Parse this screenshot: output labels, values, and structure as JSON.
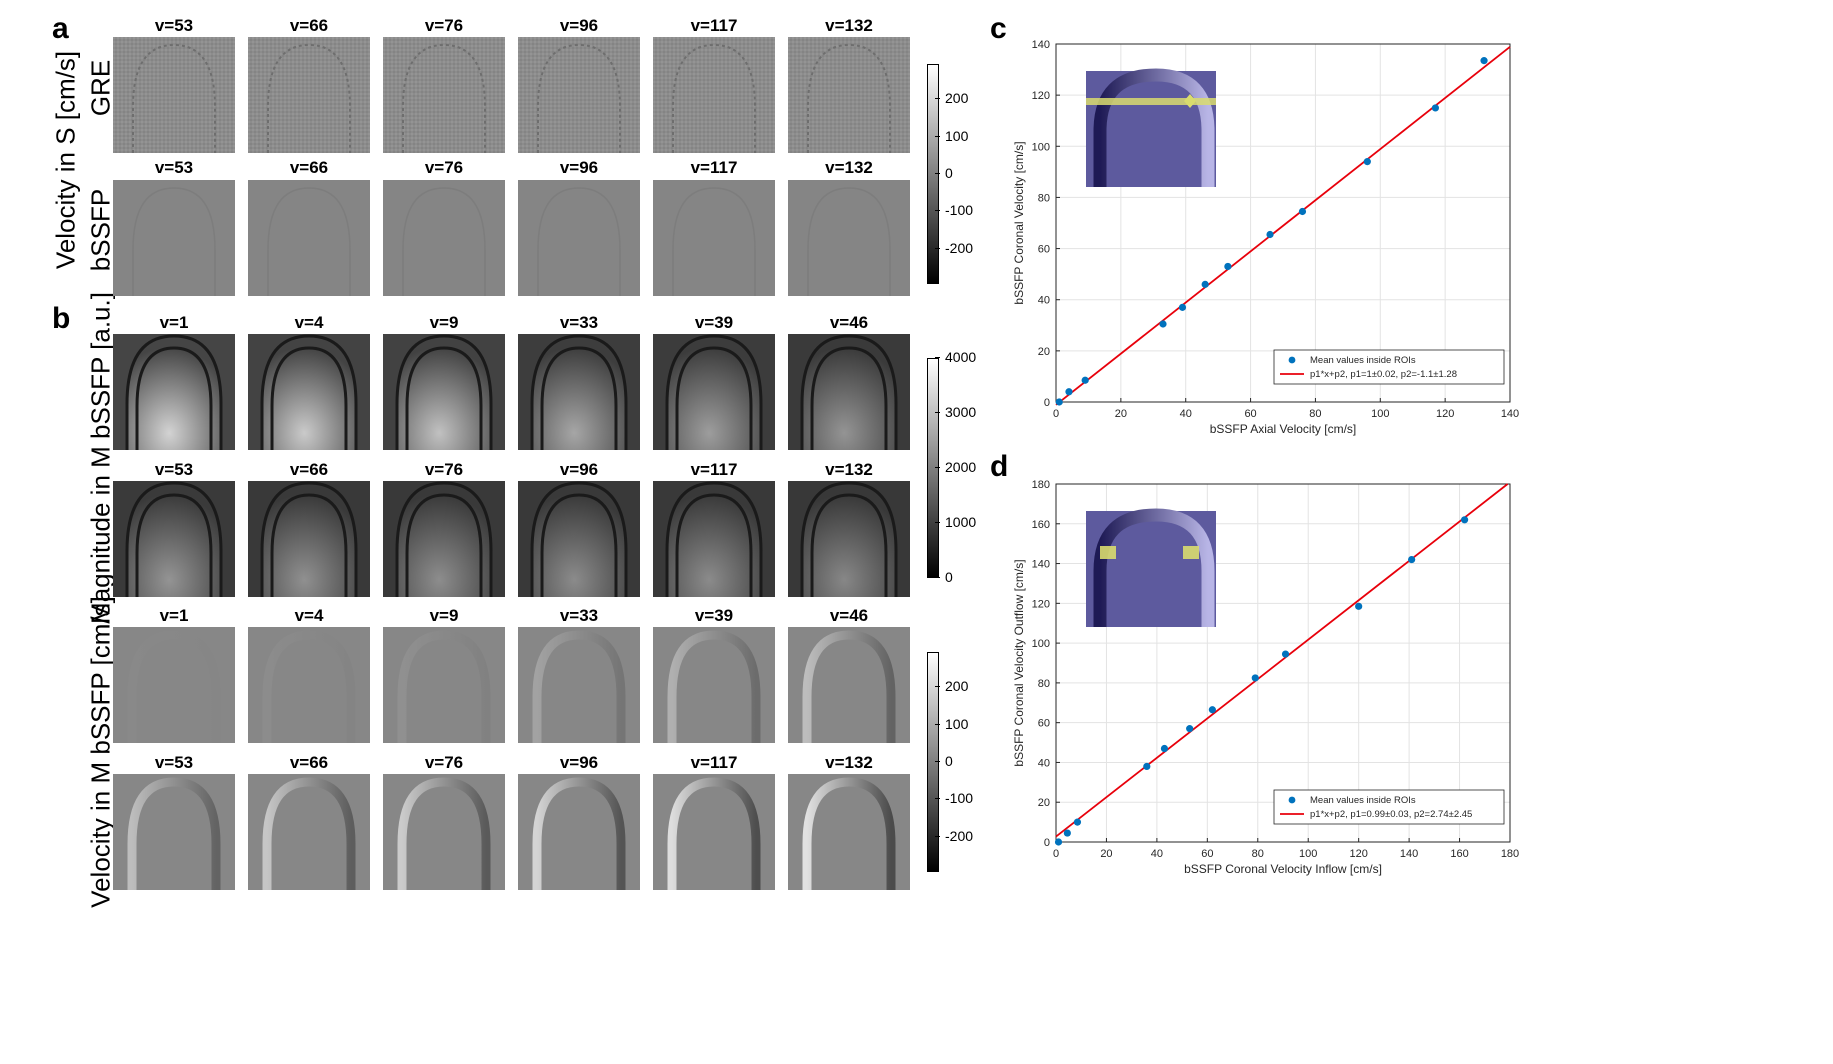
{
  "figure": {
    "panel_letters": {
      "a": "a",
      "b": "b",
      "c": "c",
      "d": "d"
    },
    "row_labels": {
      "velocity_s": "Velocity in S [cm/s]",
      "gre": "GRE",
      "bssfp": "bSSFP",
      "magnitude_m": "Magnitude in M bSSFP [a.u.]",
      "velocity_m": "Velocity in M bSSFP [cm/s]"
    },
    "titles_high": [
      "v=53",
      "v=66",
      "v=76",
      "v=96",
      "v=117",
      "v=132"
    ],
    "titles_low": [
      "v=1",
      "v=4",
      "v=9",
      "v=33",
      "v=39",
      "v=46"
    ],
    "colorbars": {
      "velocity_a": [
        "200",
        "100",
        "0",
        "-100",
        "-200"
      ],
      "magnitude": [
        "4000",
        "3000",
        "2000",
        "1000",
        "0"
      ],
      "velocity_b": [
        "200",
        "100",
        "0",
        "-100",
        "-200"
      ]
    },
    "colors": {
      "fit_line": "#e8000b",
      "points": "#0072bd",
      "inset_bg": "#5d5a9e",
      "inset_roi": "#d9dc6e"
    }
  },
  "chart_data": [
    {
      "type": "scatter",
      "panel": "c",
      "xlabel": "bSSFP Axial Velocity [cm/s]",
      "ylabel": "bSSFP Coronal Velocity [cm/s]",
      "xlim": [
        0,
        140
      ],
      "ylim": [
        0,
        140
      ],
      "xticks": [
        0,
        20,
        40,
        60,
        80,
        100,
        120,
        140
      ],
      "yticks": [
        0,
        20,
        40,
        60,
        80,
        100,
        120,
        140
      ],
      "grid": true,
      "legend_position": "bottom-right",
      "series": [
        {
          "name": "Mean values inside ROIs",
          "kind": "points",
          "x": [
            1,
            4,
            9,
            33,
            39,
            46,
            53,
            66,
            76,
            96,
            117,
            132
          ],
          "y": [
            0,
            4,
            8.5,
            30.5,
            37,
            46,
            53,
            65.5,
            74.5,
            94,
            115,
            133.5
          ]
        },
        {
          "name": "p1*x+p2, p1=1±0.02, p2=-1.1±1.28",
          "kind": "line",
          "slope": 1.0,
          "intercept": -1.1
        }
      ]
    },
    {
      "type": "scatter",
      "panel": "d",
      "xlabel": "bSSFP Coronal Velocity Inflow [cm/s]",
      "ylabel": "bSSFP Coronal Velocity Outflow [cm/s]",
      "xlim": [
        0,
        180
      ],
      "ylim": [
        0,
        180
      ],
      "xticks": [
        0,
        20,
        40,
        60,
        80,
        100,
        120,
        140,
        160,
        180
      ],
      "yticks": [
        0,
        20,
        40,
        60,
        80,
        100,
        120,
        140,
        160,
        180
      ],
      "grid": true,
      "legend_position": "bottom-right",
      "series": [
        {
          "name": "Mean values inside ROIs",
          "kind": "points",
          "x": [
            1,
            4.5,
            8.5,
            36,
            43,
            53,
            62,
            79,
            91,
            120,
            141,
            162
          ],
          "y": [
            0,
            4.5,
            10,
            38,
            47,
            57,
            66.5,
            82.5,
            94.5,
            118.5,
            142,
            162
          ]
        },
        {
          "name": "p1*x+p2, p1=0.99±0.03, p2=2.74±2.45",
          "kind": "line",
          "slope": 0.99,
          "intercept": 2.74
        }
      ]
    }
  ]
}
